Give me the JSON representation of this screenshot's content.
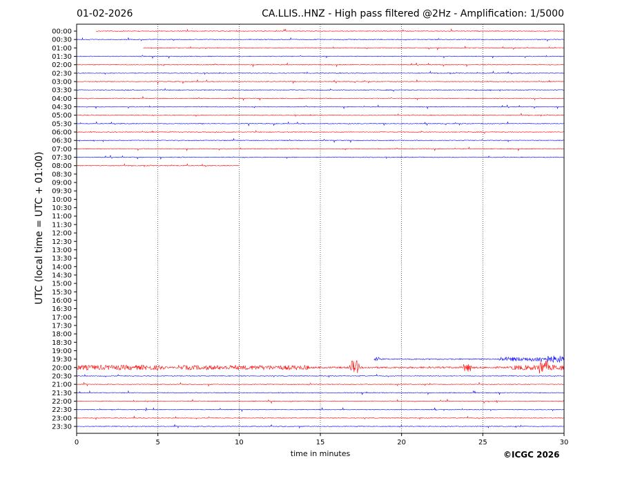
{
  "header": {
    "date": "01-02-2026",
    "title": "CA.LLIS..HNZ - High pass filtered @2Hz - Amplification: 1/5000"
  },
  "footer": {
    "copyright": "©ICGC 2026"
  },
  "chart_data": {
    "type": "line",
    "xlabel": "time in minutes",
    "ylabel": "UTC (local time = UTC + 01:00)",
    "xlim": [
      0,
      30
    ],
    "xticks": [
      "0",
      "5",
      "10",
      "15",
      "20",
      "25",
      "30"
    ],
    "grid": "vertical dotted lines at 5-minute ticks",
    "row_labels": [
      "00:00",
      "00:30",
      "01:00",
      "01:30",
      "02:00",
      "02:30",
      "03:00",
      "03:30",
      "04:00",
      "04:30",
      "05:00",
      "05:30",
      "06:00",
      "06:30",
      "07:00",
      "07:30",
      "08:00",
      "08:30",
      "09:00",
      "09:30",
      "10:00",
      "10:30",
      "11:00",
      "11:30",
      "12:00",
      "12:30",
      "13:00",
      "13:30",
      "14:00",
      "14:30",
      "15:00",
      "15:30",
      "16:00",
      "16:30",
      "17:00",
      "17:30",
      "18:00",
      "18:30",
      "19:00",
      "19:30",
      "20:00",
      "20:30",
      "21:00",
      "21:30",
      "22:00",
      "22:30",
      "23:00",
      "23:30"
    ],
    "colors": {
      "even_rows": "#ff0000",
      "odd_rows": "#0000ff"
    },
    "traces": [
      {
        "row": "00:00",
        "start": 1.2,
        "end": 30,
        "level": "quiet"
      },
      {
        "row": "00:30",
        "start": 0,
        "end": 30,
        "level": "quiet"
      },
      {
        "row": "01:00",
        "start": 4.1,
        "end": 30,
        "level": "quiet"
      },
      {
        "row": "01:30",
        "start": 0,
        "end": 30,
        "level": "quiet"
      },
      {
        "row": "02:00",
        "start": 0,
        "end": 30,
        "level": "quiet"
      },
      {
        "row": "02:30",
        "start": 0,
        "end": 30,
        "level": "quiet"
      },
      {
        "row": "03:00",
        "start": 0,
        "end": 30,
        "level": "quiet"
      },
      {
        "row": "03:30",
        "start": 0,
        "end": 30,
        "level": "quiet"
      },
      {
        "row": "04:00",
        "start": 0,
        "end": 30,
        "level": "quiet"
      },
      {
        "row": "04:30",
        "start": 0,
        "end": 30,
        "level": "quiet"
      },
      {
        "row": "05:00",
        "start": 0,
        "end": 30,
        "level": "quiet"
      },
      {
        "row": "05:30",
        "start": 0,
        "end": 30,
        "level": "quiet"
      },
      {
        "row": "06:00",
        "start": 0,
        "end": 30,
        "level": "quiet"
      },
      {
        "row": "06:30",
        "start": 0,
        "end": 30,
        "level": "quiet"
      },
      {
        "row": "07:00",
        "start": 0,
        "end": 30,
        "level": "quiet"
      },
      {
        "row": "07:30",
        "start": 0,
        "end": 30,
        "level": "quiet"
      },
      {
        "row": "08:00",
        "start": 0,
        "end": 10,
        "level": "quiet"
      },
      {
        "row": "19:30",
        "start": 18.3,
        "end": 30,
        "level": "noisy_end"
      },
      {
        "row": "20:00",
        "start": 0,
        "end": 30,
        "level": "active"
      },
      {
        "row": "20:30",
        "start": 0,
        "end": 30,
        "level": "quiet"
      },
      {
        "row": "21:00",
        "start": 0,
        "end": 30,
        "level": "quiet"
      },
      {
        "row": "21:30",
        "start": 0,
        "end": 30,
        "level": "quiet"
      },
      {
        "row": "22:00",
        "start": 0,
        "end": 30,
        "level": "quiet"
      },
      {
        "row": "22:30",
        "start": 0,
        "end": 30,
        "level": "quiet"
      },
      {
        "row": "23:00",
        "start": 0,
        "end": 30,
        "level": "quiet"
      },
      {
        "row": "23:30",
        "start": 0,
        "end": 30,
        "level": "quiet"
      }
    ]
  }
}
